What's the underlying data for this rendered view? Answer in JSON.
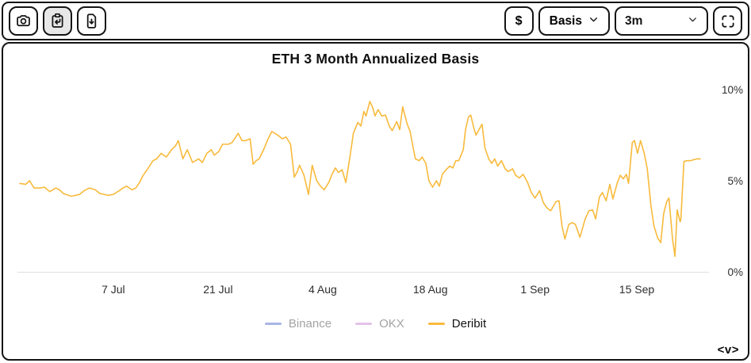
{
  "toolbar": {
    "left_buttons": [
      {
        "label": "screenshot",
        "icon": "camera-icon",
        "active": false
      },
      {
        "label": "copy-to-clipboard",
        "icon": "clipboard-arrow-icon",
        "active": true
      },
      {
        "label": "download-data",
        "icon": "file-download-icon",
        "active": false
      }
    ],
    "currency_button_label": "$",
    "metric_dropdown_label": "Basis",
    "timeframe_select_value": "3m",
    "fullscreen_icon": "fullscreen-icon"
  },
  "chart": {
    "title": "ETH 3 Month Annualized Basis",
    "legend": [
      {
        "label": "Binance",
        "color": "#a8b4e6",
        "active": false
      },
      {
        "label": "OKX",
        "color": "#e5c2ea",
        "active": false
      },
      {
        "label": "Deribit",
        "color": "#F8BA3C",
        "active": true
      }
    ]
  },
  "footer": {
    "logo_text": "<v>"
  },
  "chart_data": {
    "type": "line",
    "title": "ETH 3 Month Annualized Basis",
    "ylabel": "",
    "xlabel": "",
    "ylim": [
      0,
      10
    ],
    "grid": false,
    "legend_position": "bottom",
    "y_ticks": [
      {
        "label": "0%",
        "value": 0
      },
      {
        "label": "5%",
        "value": 5
      },
      {
        "label": "10%",
        "value": 10
      }
    ],
    "x_ticks": [
      {
        "label": "7 Jul",
        "day": 12.5
      },
      {
        "label": "21 Jul",
        "day": 26.5
      },
      {
        "label": "4 Aug",
        "day": 40.5
      },
      {
        "label": "18 Aug",
        "day": 54.9
      },
      {
        "label": "1 Sep",
        "day": 68.9
      },
      {
        "label": "15 Sep",
        "day": 82.5
      }
    ],
    "x_axis": {
      "unit": "days",
      "start_day": 0,
      "end_day": 91,
      "tick_interval_days": 14
    },
    "series": [
      {
        "name": "Binance",
        "visible": false,
        "color": "#a8b4e6",
        "points": []
      },
      {
        "name": "OKX",
        "visible": false,
        "color": "#e5c2ea",
        "points": []
      },
      {
        "name": "Deribit",
        "visible": true,
        "color": "#F8BA3C",
        "points": [
          [
            0,
            4.85
          ],
          [
            0.8,
            4.8
          ],
          [
            1.3,
            5.0
          ],
          [
            1.9,
            4.6
          ],
          [
            2.7,
            4.6
          ],
          [
            3.3,
            4.65
          ],
          [
            4.0,
            4.4
          ],
          [
            4.8,
            4.6
          ],
          [
            5.3,
            4.5
          ],
          [
            5.8,
            4.3
          ],
          [
            6.9,
            4.15
          ],
          [
            8.0,
            4.25
          ],
          [
            8.6,
            4.45
          ],
          [
            9.3,
            4.6
          ],
          [
            10.1,
            4.5
          ],
          [
            10.7,
            4.3
          ],
          [
            11.8,
            4.2
          ],
          [
            12.5,
            4.25
          ],
          [
            13.3,
            4.45
          ],
          [
            13.8,
            4.6
          ],
          [
            14.3,
            4.7
          ],
          [
            15.0,
            4.5
          ],
          [
            15.5,
            4.6
          ],
          [
            16.0,
            4.9
          ],
          [
            16.5,
            5.3
          ],
          [
            17.1,
            5.65
          ],
          [
            17.8,
            6.1
          ],
          [
            18.3,
            6.2
          ],
          [
            18.9,
            6.5
          ],
          [
            19.6,
            6.3
          ],
          [
            20.3,
            6.7
          ],
          [
            20.8,
            6.9
          ],
          [
            21.2,
            7.2
          ],
          [
            21.8,
            6.2
          ],
          [
            22.4,
            6.7
          ],
          [
            23.1,
            6.0
          ],
          [
            23.9,
            6.2
          ],
          [
            24.4,
            6.0
          ],
          [
            25.0,
            6.5
          ],
          [
            25.6,
            6.7
          ],
          [
            26.0,
            6.4
          ],
          [
            26.6,
            6.6
          ],
          [
            27.1,
            7.0
          ],
          [
            27.9,
            7.0
          ],
          [
            28.4,
            7.1
          ],
          [
            29.2,
            7.6
          ],
          [
            29.7,
            7.2
          ],
          [
            30.2,
            7.2
          ],
          [
            30.8,
            7.3
          ],
          [
            31.2,
            5.9
          ],
          [
            31.6,
            6.1
          ],
          [
            32.0,
            6.2
          ],
          [
            32.7,
            6.8
          ],
          [
            33.2,
            7.3
          ],
          [
            33.7,
            7.7
          ],
          [
            34.5,
            7.5
          ],
          [
            35.1,
            7.3
          ],
          [
            35.6,
            7.4
          ],
          [
            36.2,
            7.0
          ],
          [
            36.7,
            5.2
          ],
          [
            37.1,
            5.5
          ],
          [
            37.4,
            5.85
          ],
          [
            38.0,
            5.3
          ],
          [
            38.6,
            4.25
          ],
          [
            39.1,
            5.85
          ],
          [
            39.7,
            5.0
          ],
          [
            40.2,
            4.7
          ],
          [
            40.7,
            4.5
          ],
          [
            41.3,
            4.9
          ],
          [
            41.8,
            5.4
          ],
          [
            42.2,
            5.7
          ],
          [
            42.6,
            5.45
          ],
          [
            43.1,
            5.6
          ],
          [
            43.6,
            4.9
          ],
          [
            44.1,
            6.2
          ],
          [
            44.6,
            7.6
          ],
          [
            45.2,
            8.2
          ],
          [
            45.6,
            8.0
          ],
          [
            46.0,
            8.8
          ],
          [
            46.3,
            8.55
          ],
          [
            46.8,
            9.35
          ],
          [
            47.2,
            9.0
          ],
          [
            47.5,
            8.55
          ],
          [
            47.9,
            8.9
          ],
          [
            48.4,
            8.55
          ],
          [
            48.9,
            8.6
          ],
          [
            49.4,
            8.0
          ],
          [
            49.8,
            7.75
          ],
          [
            50.4,
            8.25
          ],
          [
            50.8,
            7.8
          ],
          [
            51.2,
            9.05
          ],
          [
            51.8,
            8.1
          ],
          [
            52.2,
            7.7
          ],
          [
            52.6,
            6.8
          ],
          [
            52.9,
            6.2
          ],
          [
            53.4,
            6.1
          ],
          [
            53.8,
            6.3
          ],
          [
            54.3,
            5.95
          ],
          [
            54.7,
            5.0
          ],
          [
            55.2,
            4.65
          ],
          [
            55.7,
            5.0
          ],
          [
            56.1,
            4.7
          ],
          [
            56.5,
            5.35
          ],
          [
            57.1,
            5.65
          ],
          [
            57.5,
            5.8
          ],
          [
            57.9,
            5.7
          ],
          [
            58.3,
            6.1
          ],
          [
            58.7,
            6.1
          ],
          [
            59.3,
            6.7
          ],
          [
            59.6,
            7.8
          ],
          [
            60.0,
            8.5
          ],
          [
            60.3,
            8.6
          ],
          [
            60.7,
            7.9
          ],
          [
            61.0,
            7.5
          ],
          [
            61.4,
            7.8
          ],
          [
            61.8,
            8.1
          ],
          [
            62.2,
            6.8
          ],
          [
            62.7,
            6.2
          ],
          [
            63.1,
            5.95
          ],
          [
            63.5,
            6.2
          ],
          [
            63.9,
            5.8
          ],
          [
            64.4,
            6.1
          ],
          [
            64.9,
            5.65
          ],
          [
            65.3,
            5.5
          ],
          [
            65.9,
            5.65
          ],
          [
            66.3,
            5.3
          ],
          [
            66.8,
            5.15
          ],
          [
            67.3,
            5.35
          ],
          [
            67.9,
            4.9
          ],
          [
            68.4,
            4.35
          ],
          [
            68.9,
            4.05
          ],
          [
            69.5,
            4.45
          ],
          [
            70.0,
            3.8
          ],
          [
            70.5,
            3.5
          ],
          [
            71.0,
            3.35
          ],
          [
            71.7,
            3.85
          ],
          [
            72.1,
            3.9
          ],
          [
            72.5,
            2.5
          ],
          [
            72.9,
            1.8
          ],
          [
            73.4,
            2.6
          ],
          [
            73.9,
            2.7
          ],
          [
            74.3,
            2.6
          ],
          [
            74.9,
            1.9
          ],
          [
            75.6,
            2.9
          ],
          [
            76.1,
            3.35
          ],
          [
            76.6,
            3.4
          ],
          [
            77.0,
            2.9
          ],
          [
            77.5,
            4.1
          ],
          [
            77.9,
            4.35
          ],
          [
            78.4,
            3.9
          ],
          [
            78.9,
            4.8
          ],
          [
            79.3,
            4.0
          ],
          [
            79.9,
            4.9
          ],
          [
            80.3,
            5.3
          ],
          [
            80.7,
            5.1
          ],
          [
            81.1,
            5.35
          ],
          [
            81.4,
            4.85
          ],
          [
            81.9,
            7.1
          ],
          [
            82.2,
            7.2
          ],
          [
            82.6,
            6.5
          ],
          [
            83.0,
            7.2
          ],
          [
            83.5,
            6.5
          ],
          [
            83.9,
            5.65
          ],
          [
            84.4,
            3.6
          ],
          [
            84.8,
            2.5
          ],
          [
            85.3,
            1.85
          ],
          [
            85.7,
            1.6
          ],
          [
            86.1,
            3.2
          ],
          [
            86.5,
            3.85
          ],
          [
            86.8,
            4.05
          ],
          [
            87.3,
            1.75
          ],
          [
            87.6,
            0.85
          ],
          [
            87.9,
            3.4
          ],
          [
            88.3,
            2.75
          ],
          [
            88.4,
            2.9
          ],
          [
            88.8,
            6.05
          ],
          [
            89.2,
            6.1
          ],
          [
            89.7,
            6.1
          ],
          [
            90.1,
            6.15
          ],
          [
            90.6,
            6.2
          ],
          [
            91.0,
            6.2
          ]
        ]
      }
    ]
  }
}
